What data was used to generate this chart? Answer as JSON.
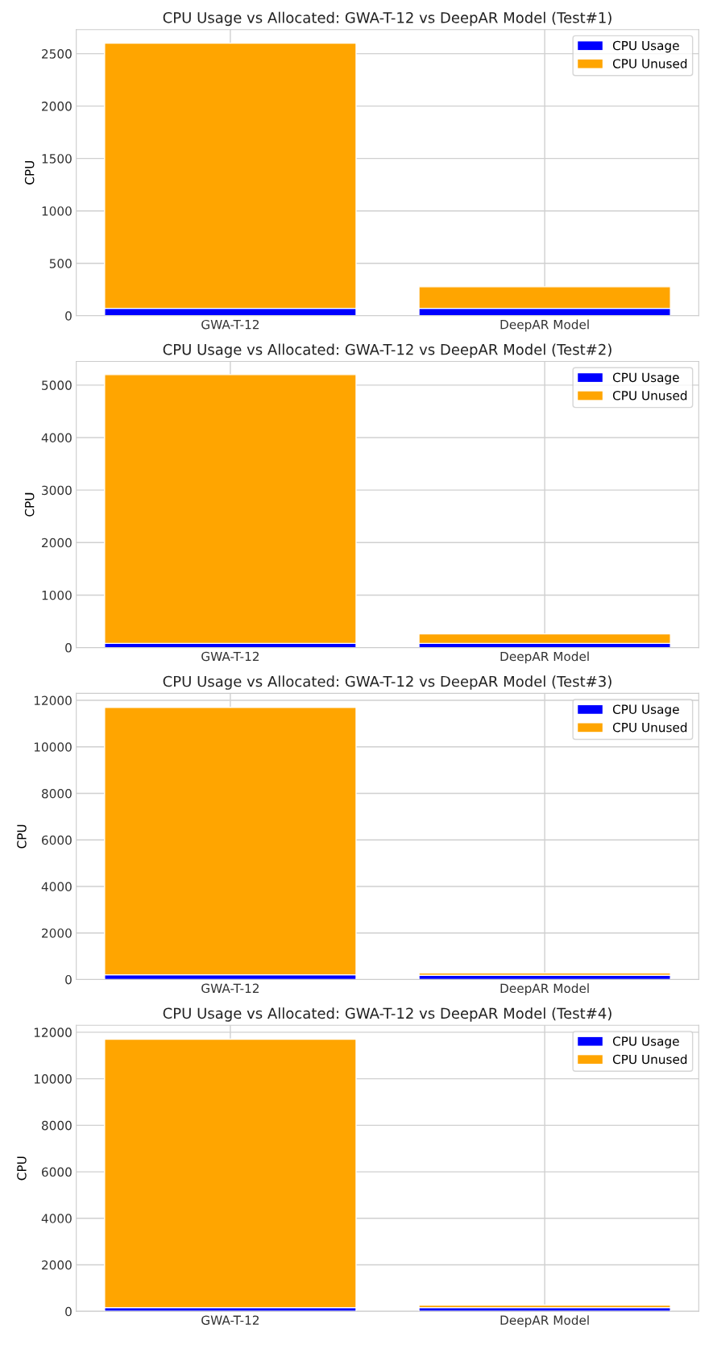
{
  "chart_data": [
    {
      "type": "bar",
      "title": "CPU Usage vs Allocated: GWA-T-12 vs DeepAR Model (Test#1)",
      "ylabel": "CPU",
      "categories": [
        "GWA-T-12",
        "DeepAR Model"
      ],
      "stacked": true,
      "series": [
        {
          "name": "CPU Usage",
          "color": "#0000ff",
          "values": [
            70,
            70
          ]
        },
        {
          "name": "CPU Unused",
          "color": "#ffa500",
          "values": [
            2530,
            206
          ]
        }
      ],
      "ylim": [
        0,
        2730
      ],
      "yticks": [
        0,
        500,
        1000,
        1500,
        2000,
        2500
      ],
      "grid": true,
      "legend": "top right"
    },
    {
      "type": "bar",
      "title": "CPU Usage vs Allocated: GWA-T-12 vs DeepAR Model (Test#2)",
      "ylabel": "CPU",
      "categories": [
        "GWA-T-12",
        "DeepAR Model"
      ],
      "stacked": true,
      "series": [
        {
          "name": "CPU Usage",
          "color": "#0000ff",
          "values": [
            80,
            80
          ]
        },
        {
          "name": "CPU Unused",
          "color": "#ffa500",
          "values": [
            5120,
            180
          ]
        }
      ],
      "ylim": [
        0,
        5450
      ],
      "yticks": [
        0,
        1000,
        2000,
        3000,
        4000,
        5000
      ],
      "grid": true,
      "legend": "top right"
    },
    {
      "type": "bar",
      "title": "CPU Usage vs Allocated: GWA-T-12 vs DeepAR Model (Test#3)",
      "ylabel": "CPU",
      "categories": [
        "GWA-T-12",
        "DeepAR Model"
      ],
      "stacked": true,
      "series": [
        {
          "name": "CPU Usage",
          "color": "#0000ff",
          "values": [
            200,
            180
          ]
        },
        {
          "name": "CPU Unused",
          "color": "#ffa500",
          "values": [
            11500,
            100
          ]
        }
      ],
      "ylim": [
        0,
        12300
      ],
      "yticks": [
        0,
        2000,
        4000,
        6000,
        8000,
        10000,
        12000
      ],
      "grid": true,
      "legend": "top right"
    },
    {
      "type": "bar",
      "title": "CPU Usage vs Allocated: GWA-T-12 vs DeepAR Model (Test#4)",
      "ylabel": "CPU",
      "categories": [
        "GWA-T-12",
        "DeepAR Model"
      ],
      "stacked": true,
      "series": [
        {
          "name": "CPU Usage",
          "color": "#0000ff",
          "values": [
            160,
            160
          ]
        },
        {
          "name": "CPU Unused",
          "color": "#ffa500",
          "values": [
            11540,
            110
          ]
        }
      ],
      "ylim": [
        0,
        12300
      ],
      "yticks": [
        0,
        2000,
        4000,
        6000,
        8000,
        10000,
        12000
      ],
      "grid": true,
      "legend": "top right"
    }
  ]
}
